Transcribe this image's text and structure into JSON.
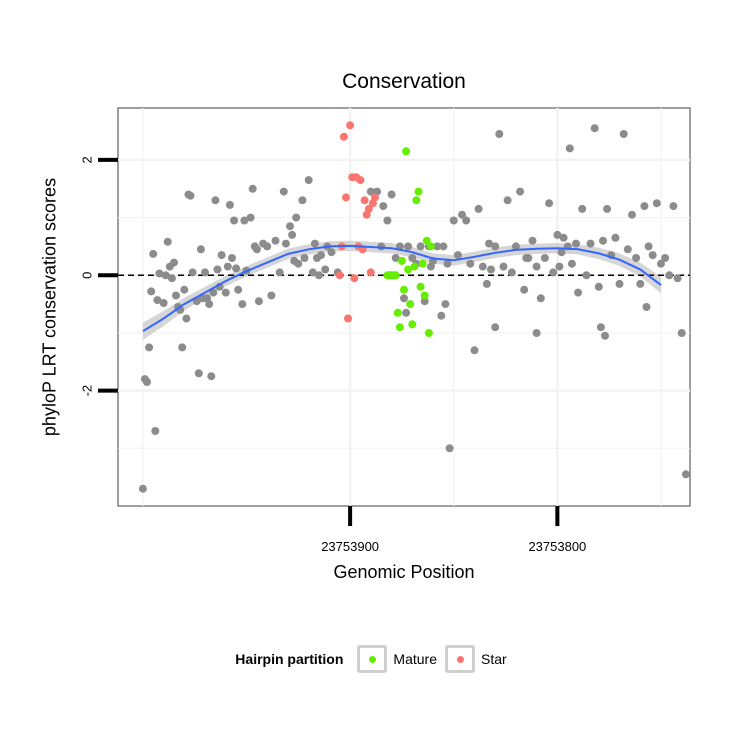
{
  "chart_data": {
    "type": "scatter",
    "title": "Conservation",
    "xlabel": "Genomic Position",
    "ylabel": "phyloP LRT conservation scores",
    "x_reversed": true,
    "xlim": [
      23754012,
      23753736
    ],
    "ylim": [
      -4.0,
      2.9
    ],
    "x_ticks": [
      23753900,
      23753800
    ],
    "y_ticks": [
      -2,
      0,
      2
    ],
    "y_tick_labels": [
      "-2",
      "0",
      "2"
    ],
    "reference_line": 0,
    "legend": {
      "title": "Hairpin partition",
      "entries": [
        {
          "label": "Mature",
          "color": "#66ee00"
        },
        {
          "label": "Star",
          "color": "#f8766d"
        }
      ],
      "placement": "bottom"
    },
    "colors": {
      "other": "#8c8c8c",
      "Mature": "#66ee00",
      "Star": "#f8766d",
      "smooth": "#3366ff",
      "band": "#cfcfcf"
    },
    "smooth": {
      "x": [
        23754000,
        23753990,
        23753980,
        23753970,
        23753960,
        23753950,
        23753940,
        23753930,
        23753920,
        23753910,
        23753900,
        23753890,
        23753880,
        23753870,
        23753860,
        23753850,
        23753840,
        23753830,
        23753820,
        23753810,
        23753800,
        23753790,
        23753780,
        23753770,
        23753760,
        23753750
      ],
      "y": [
        -0.97,
        -0.75,
        -0.5,
        -0.3,
        -0.1,
        0.07,
        0.22,
        0.37,
        0.45,
        0.5,
        0.51,
        0.49,
        0.47,
        0.4,
        0.29,
        0.26,
        0.32,
        0.39,
        0.44,
        0.46,
        0.47,
        0.45,
        0.38,
        0.27,
        0.1,
        -0.17
      ],
      "se": [
        0.15,
        0.13,
        0.11,
        0.1,
        0.09,
        0.09,
        0.09,
        0.09,
        0.09,
        0.09,
        0.09,
        0.09,
        0.09,
        0.09,
        0.09,
        0.09,
        0.09,
        0.09,
        0.09,
        0.09,
        0.09,
        0.09,
        0.1,
        0.11,
        0.12,
        0.14
      ]
    },
    "points": [
      {
        "x": 23754000,
        "y": -3.7,
        "g": "other"
      },
      {
        "x": 23753999,
        "y": -1.8,
        "g": "other"
      },
      {
        "x": 23753998,
        "y": -1.85,
        "g": "other"
      },
      {
        "x": 23753997,
        "y": -1.25,
        "g": "other"
      },
      {
        "x": 23753996,
        "y": -0.28,
        "g": "other"
      },
      {
        "x": 23753995,
        "y": 0.37,
        "g": "other"
      },
      {
        "x": 23753994,
        "y": -2.7,
        "g": "other"
      },
      {
        "x": 23753993,
        "y": -0.43,
        "g": "other"
      },
      {
        "x": 23753992,
        "y": 0.03,
        "g": "other"
      },
      {
        "x": 23753990,
        "y": -0.48,
        "g": "other"
      },
      {
        "x": 23753989,
        "y": 0.0,
        "g": "other"
      },
      {
        "x": 23753988,
        "y": 0.58,
        "g": "other"
      },
      {
        "x": 23753987,
        "y": 0.15,
        "g": "other"
      },
      {
        "x": 23753986,
        "y": -0.05,
        "g": "other"
      },
      {
        "x": 23753985,
        "y": 0.22,
        "g": "other"
      },
      {
        "x": 23753984,
        "y": -0.35,
        "g": "other"
      },
      {
        "x": 23753983,
        "y": -0.55,
        "g": "other"
      },
      {
        "x": 23753982,
        "y": -0.6,
        "g": "other"
      },
      {
        "x": 23753981,
        "y": -1.25,
        "g": "other"
      },
      {
        "x": 23753980,
        "y": -0.25,
        "g": "other"
      },
      {
        "x": 23753979,
        "y": -0.75,
        "g": "other"
      },
      {
        "x": 23753978,
        "y": 1.4,
        "g": "other"
      },
      {
        "x": 23753977,
        "y": 1.38,
        "g": "other"
      },
      {
        "x": 23753976,
        "y": 0.05,
        "g": "other"
      },
      {
        "x": 23753974,
        "y": -0.45,
        "g": "other"
      },
      {
        "x": 23753973,
        "y": -1.7,
        "g": "other"
      },
      {
        "x": 23753972,
        "y": 0.45,
        "g": "other"
      },
      {
        "x": 23753971,
        "y": -0.4,
        "g": "other"
      },
      {
        "x": 23753970,
        "y": 0.05,
        "g": "other"
      },
      {
        "x": 23753969,
        "y": -0.4,
        "g": "other"
      },
      {
        "x": 23753968,
        "y": -0.5,
        "g": "other"
      },
      {
        "x": 23753967,
        "y": -1.75,
        "g": "other"
      },
      {
        "x": 23753966,
        "y": -0.3,
        "g": "other"
      },
      {
        "x": 23753965,
        "y": 1.3,
        "g": "other"
      },
      {
        "x": 23753964,
        "y": 0.1,
        "g": "other"
      },
      {
        "x": 23753963,
        "y": -0.2,
        "g": "other"
      },
      {
        "x": 23753962,
        "y": 0.35,
        "g": "other"
      },
      {
        "x": 23753960,
        "y": -0.3,
        "g": "other"
      },
      {
        "x": 23753959,
        "y": 0.15,
        "g": "other"
      },
      {
        "x": 23753958,
        "y": 1.22,
        "g": "other"
      },
      {
        "x": 23753957,
        "y": 0.3,
        "g": "other"
      },
      {
        "x": 23753956,
        "y": 0.95,
        "g": "other"
      },
      {
        "x": 23753955,
        "y": 0.12,
        "g": "other"
      },
      {
        "x": 23753954,
        "y": -0.25,
        "g": "other"
      },
      {
        "x": 23753952,
        "y": -0.5,
        "g": "other"
      },
      {
        "x": 23753951,
        "y": 0.95,
        "g": "other"
      },
      {
        "x": 23753950,
        "y": 0.08,
        "g": "other"
      },
      {
        "x": 23753948,
        "y": 1.0,
        "g": "other"
      },
      {
        "x": 23753947,
        "y": 1.5,
        "g": "other"
      },
      {
        "x": 23753946,
        "y": 0.5,
        "g": "other"
      },
      {
        "x": 23753944,
        "y": -0.45,
        "g": "other"
      },
      {
        "x": 23753942,
        "y": 0.55,
        "g": "other"
      },
      {
        "x": 23753940,
        "y": 0.5,
        "g": "other"
      },
      {
        "x": 23753936,
        "y": 0.6,
        "g": "other"
      },
      {
        "x": 23753934,
        "y": 0.05,
        "g": "other"
      },
      {
        "x": 23753932,
        "y": 1.45,
        "g": "other"
      },
      {
        "x": 23753931,
        "y": 0.55,
        "g": "other"
      },
      {
        "x": 23753929,
        "y": 0.85,
        "g": "other"
      },
      {
        "x": 23753927,
        "y": 0.25,
        "g": "other"
      },
      {
        "x": 23753926,
        "y": 1.0,
        "g": "other"
      },
      {
        "x": 23753925,
        "y": 0.2,
        "g": "other"
      },
      {
        "x": 23753923,
        "y": 1.3,
        "g": "other"
      },
      {
        "x": 23753922,
        "y": 0.3,
        "g": "other"
      },
      {
        "x": 23753920,
        "y": 1.65,
        "g": "other"
      },
      {
        "x": 23753918,
        "y": 0.05,
        "g": "other"
      },
      {
        "x": 23753917,
        "y": 0.55,
        "g": "other"
      },
      {
        "x": 23753916,
        "y": 0.3,
        "g": "other"
      },
      {
        "x": 23753914,
        "y": 0.35,
        "g": "other"
      },
      {
        "x": 23753912,
        "y": 0.1,
        "g": "other"
      },
      {
        "x": 23753911,
        "y": 0.5,
        "g": "other"
      },
      {
        "x": 23753909,
        "y": 0.4,
        "g": "other"
      },
      {
        "x": 23753890,
        "y": 1.45,
        "g": "other"
      },
      {
        "x": 23753887,
        "y": 1.45,
        "g": "other"
      },
      {
        "x": 23753885,
        "y": 0.5,
        "g": "other"
      },
      {
        "x": 23753884,
        "y": 1.2,
        "g": "other"
      },
      {
        "x": 23753882,
        "y": 0.95,
        "g": "other"
      },
      {
        "x": 23753880,
        "y": 1.4,
        "g": "other"
      },
      {
        "x": 23753878,
        "y": 0.3,
        "g": "other"
      },
      {
        "x": 23753876,
        "y": 0.5,
        "g": "other"
      },
      {
        "x": 23753874,
        "y": -0.4,
        "g": "other"
      },
      {
        "x": 23753872,
        "y": 0.5,
        "g": "other"
      },
      {
        "x": 23753870,
        "y": 0.3,
        "g": "other"
      },
      {
        "x": 23753868,
        "y": 0.2,
        "g": "other"
      },
      {
        "x": 23753866,
        "y": 0.5,
        "g": "other"
      },
      {
        "x": 23753864,
        "y": -0.45,
        "g": "other"
      },
      {
        "x": 23753862,
        "y": 0.5,
        "g": "other"
      },
      {
        "x": 23753860,
        "y": 0.25,
        "g": "other"
      },
      {
        "x": 23753858,
        "y": 0.5,
        "g": "other"
      },
      {
        "x": 23753856,
        "y": -0.7,
        "g": "other"
      },
      {
        "x": 23753855,
        "y": 0.5,
        "g": "other"
      },
      {
        "x": 23753854,
        "y": -0.5,
        "g": "other"
      },
      {
        "x": 23753852,
        "y": -3.0,
        "g": "other"
      },
      {
        "x": 23753850,
        "y": 0.95,
        "g": "other"
      },
      {
        "x": 23753848,
        "y": 0.35,
        "g": "other"
      },
      {
        "x": 23753846,
        "y": 1.05,
        "g": "other"
      },
      {
        "x": 23753844,
        "y": 0.95,
        "g": "other"
      },
      {
        "x": 23753842,
        "y": 0.2,
        "g": "other"
      },
      {
        "x": 23753840,
        "y": -1.3,
        "g": "other"
      },
      {
        "x": 23753838,
        "y": 1.15,
        "g": "other"
      },
      {
        "x": 23753836,
        "y": 0.15,
        "g": "other"
      },
      {
        "x": 23753834,
        "y": -0.15,
        "g": "other"
      },
      {
        "x": 23753832,
        "y": 0.1,
        "g": "other"
      },
      {
        "x": 23753830,
        "y": 0.5,
        "g": "other"
      },
      {
        "x": 23753828,
        "y": 2.45,
        "g": "other"
      },
      {
        "x": 23753826,
        "y": 0.15,
        "g": "other"
      },
      {
        "x": 23753824,
        "y": 1.3,
        "g": "other"
      },
      {
        "x": 23753822,
        "y": 0.05,
        "g": "other"
      },
      {
        "x": 23753820,
        "y": 0.5,
        "g": "other"
      },
      {
        "x": 23753818,
        "y": 1.45,
        "g": "other"
      },
      {
        "x": 23753816,
        "y": -0.25,
        "g": "other"
      },
      {
        "x": 23753814,
        "y": 0.3,
        "g": "other"
      },
      {
        "x": 23753812,
        "y": 0.6,
        "g": "other"
      },
      {
        "x": 23753810,
        "y": 0.15,
        "g": "other"
      },
      {
        "x": 23753808,
        "y": -0.4,
        "g": "other"
      },
      {
        "x": 23753806,
        "y": 0.3,
        "g": "other"
      },
      {
        "x": 23753804,
        "y": 1.25,
        "g": "other"
      },
      {
        "x": 23753802,
        "y": 0.05,
        "g": "other"
      },
      {
        "x": 23753800,
        "y": 0.7,
        "g": "other"
      },
      {
        "x": 23753798,
        "y": 0.4,
        "g": "other"
      },
      {
        "x": 23753797,
        "y": 0.65,
        "g": "other"
      },
      {
        "x": 23753795,
        "y": 0.5,
        "g": "other"
      },
      {
        "x": 23753793,
        "y": 0.2,
        "g": "other"
      },
      {
        "x": 23753790,
        "y": -0.3,
        "g": "other"
      },
      {
        "x": 23753788,
        "y": 1.15,
        "g": "other"
      },
      {
        "x": 23753786,
        "y": 0.0,
        "g": "other"
      },
      {
        "x": 23753784,
        "y": 0.55,
        "g": "other"
      },
      {
        "x": 23753782,
        "y": 2.55,
        "g": "other"
      },
      {
        "x": 23753780,
        "y": -0.2,
        "g": "other"
      },
      {
        "x": 23753778,
        "y": 0.6,
        "g": "other"
      },
      {
        "x": 23753776,
        "y": 1.15,
        "g": "other"
      },
      {
        "x": 23753774,
        "y": 0.35,
        "g": "other"
      },
      {
        "x": 23753772,
        "y": 0.65,
        "g": "other"
      },
      {
        "x": 23753770,
        "y": -0.15,
        "g": "other"
      },
      {
        "x": 23753768,
        "y": 2.45,
        "g": "other"
      },
      {
        "x": 23753766,
        "y": 0.45,
        "g": "other"
      },
      {
        "x": 23753764,
        "y": 1.05,
        "g": "other"
      },
      {
        "x": 23753762,
        "y": 0.3,
        "g": "other"
      },
      {
        "x": 23753760,
        "y": -0.15,
        "g": "other"
      },
      {
        "x": 23753758,
        "y": 1.2,
        "g": "other"
      },
      {
        "x": 23753756,
        "y": 0.5,
        "g": "other"
      },
      {
        "x": 23753754,
        "y": 0.35,
        "g": "other"
      },
      {
        "x": 23753752,
        "y": 1.25,
        "g": "other"
      },
      {
        "x": 23753750,
        "y": 0.2,
        "g": "other"
      },
      {
        "x": 23753748,
        "y": 0.3,
        "g": "other"
      },
      {
        "x": 23753746,
        "y": 0.0,
        "g": "other"
      },
      {
        "x": 23753744,
        "y": 1.2,
        "g": "other"
      },
      {
        "x": 23753742,
        "y": -0.05,
        "g": "other"
      },
      {
        "x": 23753740,
        "y": -1.0,
        "g": "other"
      },
      {
        "x": 23753738,
        "y": -3.45,
        "g": "other"
      },
      {
        "x": 23753945,
        "y": 0.45,
        "g": "other"
      },
      {
        "x": 23753938,
        "y": -0.35,
        "g": "other"
      },
      {
        "x": 23753928,
        "y": 0.7,
        "g": "other"
      },
      {
        "x": 23753915,
        "y": 0.0,
        "g": "other"
      },
      {
        "x": 23753906,
        "y": 0.05,
        "g": "other"
      },
      {
        "x": 23753873,
        "y": -0.65,
        "g": "other"
      },
      {
        "x": 23753861,
        "y": 0.15,
        "g": "other"
      },
      {
        "x": 23753853,
        "y": 0.2,
        "g": "other"
      },
      {
        "x": 23753833,
        "y": 0.55,
        "g": "other"
      },
      {
        "x": 23753815,
        "y": 0.3,
        "g": "other"
      },
      {
        "x": 23753799,
        "y": 0.15,
        "g": "other"
      },
      {
        "x": 23753794,
        "y": 2.2,
        "g": "other"
      },
      {
        "x": 23753791,
        "y": 0.55,
        "g": "other"
      },
      {
        "x": 23753779,
        "y": -0.9,
        "g": "other"
      },
      {
        "x": 23753777,
        "y": -1.05,
        "g": "other"
      },
      {
        "x": 23753757,
        "y": -0.55,
        "g": "other"
      },
      {
        "x": 23753810,
        "y": -1.0,
        "g": "other"
      },
      {
        "x": 23753830,
        "y": -0.9,
        "g": "other"
      },
      {
        "x": 23753905,
        "y": 0.0,
        "g": "Star"
      },
      {
        "x": 23753904,
        "y": 0.5,
        "g": "Star"
      },
      {
        "x": 23753903,
        "y": 2.4,
        "g": "Star"
      },
      {
        "x": 23753902,
        "y": 1.35,
        "g": "Star"
      },
      {
        "x": 23753901,
        "y": -0.75,
        "g": "Star"
      },
      {
        "x": 23753900,
        "y": 2.6,
        "g": "Star"
      },
      {
        "x": 23753899,
        "y": 1.7,
        "g": "Star"
      },
      {
        "x": 23753898,
        "y": -0.05,
        "g": "Star"
      },
      {
        "x": 23753897,
        "y": 1.7,
        "g": "Star"
      },
      {
        "x": 23753896,
        "y": 0.5,
        "g": "Star"
      },
      {
        "x": 23753895,
        "y": 1.65,
        "g": "Star"
      },
      {
        "x": 23753894,
        "y": 0.45,
        "g": "Star"
      },
      {
        "x": 23753893,
        "y": 1.3,
        "g": "Star"
      },
      {
        "x": 23753892,
        "y": 1.05,
        "g": "Star"
      },
      {
        "x": 23753891,
        "y": 1.15,
        "g": "Star"
      },
      {
        "x": 23753890,
        "y": 0.05,
        "g": "Star"
      },
      {
        "x": 23753889,
        "y": 1.25,
        "g": "Star"
      },
      {
        "x": 23753888,
        "y": 1.35,
        "g": "Star"
      },
      {
        "x": 23753882,
        "y": 0.0,
        "g": "Mature"
      },
      {
        "x": 23753881,
        "y": 0.0,
        "g": "Mature"
      },
      {
        "x": 23753880,
        "y": 0.0,
        "g": "Mature"
      },
      {
        "x": 23753879,
        "y": 0.0,
        "g": "Mature"
      },
      {
        "x": 23753878,
        "y": 0.0,
        "g": "Mature"
      },
      {
        "x": 23753877,
        "y": -0.65,
        "g": "Mature"
      },
      {
        "x": 23753876,
        "y": -0.9,
        "g": "Mature"
      },
      {
        "x": 23753875,
        "y": 0.25,
        "g": "Mature"
      },
      {
        "x": 23753874,
        "y": -0.25,
        "g": "Mature"
      },
      {
        "x": 23753873,
        "y": 2.15,
        "g": "Mature"
      },
      {
        "x": 23753872,
        "y": 0.1,
        "g": "Mature"
      },
      {
        "x": 23753871,
        "y": -0.5,
        "g": "Mature"
      },
      {
        "x": 23753870,
        "y": -0.85,
        "g": "Mature"
      },
      {
        "x": 23753869,
        "y": 0.15,
        "g": "Mature"
      },
      {
        "x": 23753868,
        "y": 1.3,
        "g": "Mature"
      },
      {
        "x": 23753867,
        "y": 1.45,
        "g": "Mature"
      },
      {
        "x": 23753866,
        "y": -0.2,
        "g": "Mature"
      },
      {
        "x": 23753865,
        "y": 0.2,
        "g": "Mature"
      },
      {
        "x": 23753864,
        "y": -0.35,
        "g": "Mature"
      },
      {
        "x": 23753863,
        "y": 0.6,
        "g": "Mature"
      },
      {
        "x": 23753862,
        "y": -1.0,
        "g": "Mature"
      },
      {
        "x": 23753861,
        "y": 0.5,
        "g": "Mature"
      }
    ]
  }
}
